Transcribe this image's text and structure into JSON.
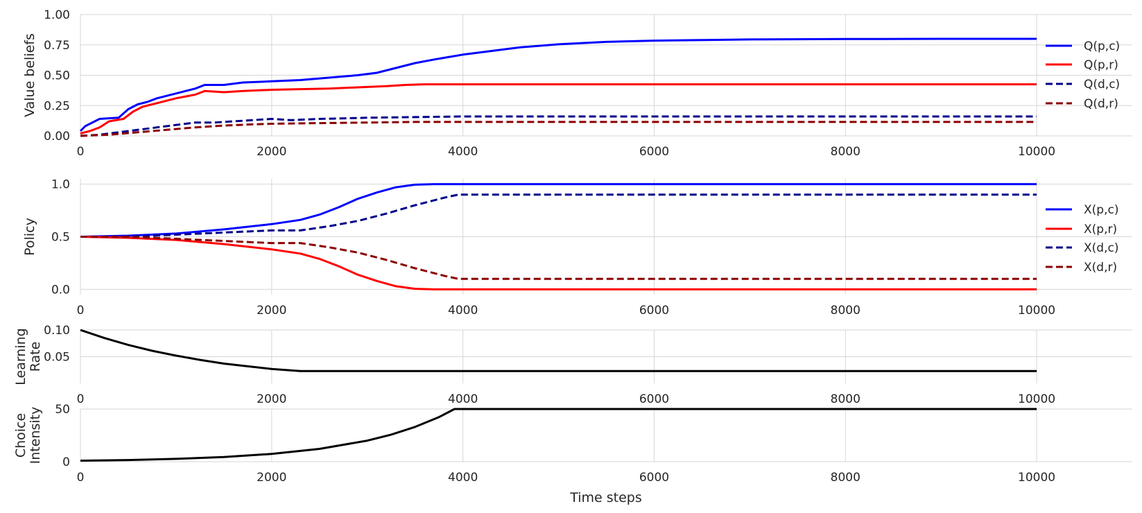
{
  "chart_data": [
    {
      "type": "line",
      "ylabel": "Value beliefs",
      "xlim": [
        0,
        11000
      ],
      "ylim": [
        0,
        1
      ],
      "yticks": [
        "0.00",
        "0.25",
        "0.50",
        "0.75",
        "1.00"
      ],
      "ytick_values": [
        0,
        0.25,
        0.5,
        0.75,
        1.0
      ],
      "xticks": [
        "0",
        "2000",
        "4000",
        "6000",
        "8000",
        "10000"
      ],
      "xtick_values": [
        0,
        2000,
        4000,
        6000,
        8000,
        10000
      ],
      "grid": true,
      "legend": "right",
      "series": [
        {
          "name": "Q(p,c)",
          "color": "#0000ff",
          "dash": false,
          "x": [
            0,
            50,
            200,
            400,
            500,
            600,
            700,
            800,
            1000,
            1200,
            1300,
            1500,
            1700,
            2000,
            2300,
            2600,
            2900,
            3100,
            3300,
            3500,
            3700,
            4000,
            4300,
            4600,
            5000,
            5500,
            6000,
            6500,
            7000,
            8000,
            9000,
            10000
          ],
          "y": [
            0.04,
            0.08,
            0.14,
            0.15,
            0.22,
            0.26,
            0.28,
            0.31,
            0.35,
            0.39,
            0.42,
            0.42,
            0.44,
            0.45,
            0.46,
            0.48,
            0.5,
            0.52,
            0.56,
            0.6,
            0.63,
            0.67,
            0.7,
            0.73,
            0.755,
            0.775,
            0.785,
            0.79,
            0.795,
            0.798,
            0.8,
            0.8
          ]
        },
        {
          "name": "Q(p,r)",
          "color": "#ff0000",
          "dash": false,
          "x": [
            0,
            100,
            200,
            300,
            450,
            550,
            650,
            800,
            1000,
            1200,
            1300,
            1500,
            1700,
            2000,
            2300,
            2600,
            2900,
            3200,
            3400,
            3600,
            4000,
            6000,
            8000,
            10000
          ],
          "y": [
            0.02,
            0.04,
            0.07,
            0.12,
            0.14,
            0.2,
            0.24,
            0.27,
            0.31,
            0.34,
            0.37,
            0.36,
            0.37,
            0.38,
            0.385,
            0.39,
            0.4,
            0.41,
            0.42,
            0.425,
            0.425,
            0.425,
            0.425,
            0.425
          ]
        },
        {
          "name": "Q(d,c)",
          "color": "#00008b",
          "dash": true,
          "x": [
            0,
            200,
            400,
            600,
            800,
            1000,
            1200,
            1400,
            1600,
            1800,
            2000,
            2200,
            2500,
            2800,
            3000,
            3500,
            4000,
            6000,
            8000,
            10000
          ],
          "y": [
            0.0,
            0.01,
            0.03,
            0.05,
            0.07,
            0.09,
            0.11,
            0.11,
            0.12,
            0.13,
            0.14,
            0.13,
            0.14,
            0.145,
            0.15,
            0.155,
            0.16,
            0.16,
            0.16,
            0.16
          ]
        },
        {
          "name": "Q(d,r)",
          "color": "#8b0000",
          "dash": true,
          "x": [
            0,
            300,
            600,
            900,
            1200,
            1500,
            1800,
            2000,
            2500,
            3000,
            3500,
            4000,
            6000,
            8000,
            10000
          ],
          "y": [
            0.0,
            0.01,
            0.03,
            0.05,
            0.07,
            0.085,
            0.095,
            0.1,
            0.105,
            0.11,
            0.115,
            0.115,
            0.115,
            0.115,
            0.115
          ]
        }
      ]
    },
    {
      "type": "line",
      "ylabel": "Policy",
      "xlim": [
        0,
        11000
      ],
      "ylim": [
        -0.05,
        1.05
      ],
      "yticks": [
        "0.0",
        "0.5",
        "1.0"
      ],
      "ytick_values": [
        0,
        0.5,
        1.0
      ],
      "xticks": [
        "0",
        "2000",
        "4000",
        "6000",
        "8000",
        "10000"
      ],
      "xtick_values": [
        0,
        2000,
        4000,
        6000,
        8000,
        10000
      ],
      "grid": true,
      "legend": "right",
      "series": [
        {
          "name": "X(p,c)",
          "color": "#0000ff",
          "dash": false,
          "x": [
            0,
            500,
            1000,
            1500,
            2000,
            2300,
            2500,
            2700,
            2900,
            3100,
            3300,
            3500,
            3700,
            4000,
            6000,
            8000,
            10000
          ],
          "y": [
            0.5,
            0.51,
            0.53,
            0.57,
            0.62,
            0.66,
            0.71,
            0.78,
            0.86,
            0.92,
            0.97,
            0.995,
            1.0,
            1.0,
            1.0,
            1.0,
            1.0
          ]
        },
        {
          "name": "X(p,r)",
          "color": "#ff0000",
          "dash": false,
          "x": [
            0,
            500,
            1000,
            1500,
            2000,
            2300,
            2500,
            2700,
            2900,
            3100,
            3300,
            3500,
            3700,
            4000,
            6000,
            8000,
            10000
          ],
          "y": [
            0.5,
            0.49,
            0.47,
            0.43,
            0.38,
            0.34,
            0.29,
            0.22,
            0.14,
            0.08,
            0.03,
            0.005,
            0.0,
            0.0,
            0.0,
            0.0,
            0.0
          ]
        },
        {
          "name": "X(d,c)",
          "color": "#00008b",
          "dash": true,
          "x": [
            0,
            500,
            1000,
            1500,
            2000,
            2300,
            2600,
            2900,
            3200,
            3500,
            3800,
            3950,
            6000,
            8000,
            10000
          ],
          "y": [
            0.5,
            0.5,
            0.52,
            0.54,
            0.56,
            0.56,
            0.6,
            0.65,
            0.72,
            0.8,
            0.87,
            0.9,
            0.9,
            0.9,
            0.9
          ]
        },
        {
          "name": "X(d,r)",
          "color": "#8b0000",
          "dash": true,
          "x": [
            0,
            500,
            1000,
            1500,
            2000,
            2300,
            2600,
            2900,
            3200,
            3500,
            3800,
            3950,
            6000,
            8000,
            10000
          ],
          "y": [
            0.5,
            0.5,
            0.48,
            0.46,
            0.44,
            0.44,
            0.4,
            0.35,
            0.28,
            0.2,
            0.13,
            0.1,
            0.1,
            0.1,
            0.1
          ]
        }
      ]
    },
    {
      "type": "line",
      "ylabel": "Learning\nRate",
      "xlim": [
        0,
        11000
      ],
      "ylim": [
        0.0,
        0.1
      ],
      "yticks": [
        "0.05",
        "0.10"
      ],
      "ytick_values": [
        0.05,
        0.1
      ],
      "xticks": [
        "0",
        "2000",
        "4000",
        "6000",
        "8000",
        "10000"
      ],
      "xtick_values": [
        0,
        2000,
        4000,
        6000,
        8000,
        10000
      ],
      "grid": true,
      "series": [
        {
          "name": "",
          "color": "#000000",
          "dash": false,
          "x": [
            0,
            250,
            500,
            750,
            1000,
            1250,
            1500,
            1750,
            2000,
            2300,
            4000,
            6000,
            8000,
            10000
          ],
          "y": [
            0.1,
            0.085,
            0.072,
            0.061,
            0.052,
            0.044,
            0.037,
            0.032,
            0.027,
            0.023,
            0.023,
            0.023,
            0.023,
            0.023
          ]
        }
      ]
    },
    {
      "type": "line",
      "ylabel": "Choice\nIntensity",
      "xlabel": "Time steps",
      "xlim": [
        0,
        11000
      ],
      "ylim": [
        0,
        50
      ],
      "yticks": [
        "0",
        "50"
      ],
      "ytick_values": [
        0,
        50
      ],
      "xticks": [
        "0",
        "2000",
        "4000",
        "6000",
        "8000",
        "10000"
      ],
      "xtick_values": [
        0,
        2000,
        4000,
        6000,
        8000,
        10000
      ],
      "grid": true,
      "series": [
        {
          "name": "",
          "color": "#000000",
          "dash": false,
          "x": [
            0,
            500,
            1000,
            1500,
            2000,
            2500,
            3000,
            3250,
            3500,
            3750,
            3912,
            4000,
            6000,
            8000,
            10000
          ],
          "y": [
            1,
            1.6,
            2.7,
            4.5,
            7.4,
            12.2,
            20,
            25.7,
            33,
            42.4,
            50,
            50,
            50,
            50,
            50
          ]
        }
      ]
    }
  ]
}
